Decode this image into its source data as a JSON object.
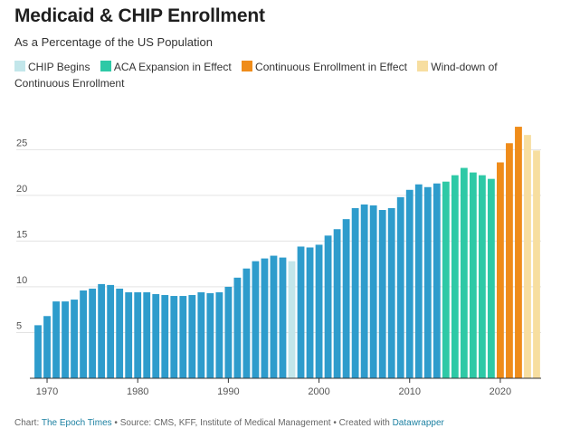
{
  "title": "Medicaid & CHIP Enrollment",
  "subtitle": "As a Percentage of the US Population",
  "legend": [
    {
      "label": "CHIP Begins",
      "color": "#c2e6ea"
    },
    {
      "label": "ACA Expansion in Effect",
      "color": "#2ec9a6"
    },
    {
      "label": "Continuous Enrollment in Effect",
      "color": "#ef8c1a"
    },
    {
      "label": "Wind-down of Continuous Enrollment",
      "color": "#f7dea0"
    }
  ],
  "footer": {
    "chart_prefix": "Chart: ",
    "chart_source": "The Epoch Times",
    "middle": " • Source: CMS, KFF, Institute of Medical Management • Created with ",
    "tool": "Datawrapper"
  },
  "chart_data": {
    "type": "bar",
    "title": "Medicaid & CHIP Enrollment",
    "subtitle": "As a Percentage of the US Population",
    "xlabel": "",
    "ylabel": "",
    "ylim": [
      0,
      28
    ],
    "yticks": [
      5,
      10,
      15,
      20,
      25
    ],
    "xticks": [
      1970,
      1980,
      1990,
      2000,
      2010,
      2020
    ],
    "xlim": [
      1969,
      2024
    ],
    "grid": true,
    "legend_position": "top",
    "colors": {
      "base": "#2e9ccc",
      "chip": "#c2e6ea",
      "aca": "#2ec9a6",
      "continuous": "#ef8c1a",
      "winddown": "#f7dea0"
    },
    "years": [
      1969,
      1970,
      1971,
      1972,
      1973,
      1974,
      1975,
      1976,
      1977,
      1978,
      1979,
      1980,
      1981,
      1982,
      1983,
      1984,
      1985,
      1986,
      1987,
      1988,
      1989,
      1990,
      1991,
      1992,
      1993,
      1994,
      1995,
      1996,
      1997,
      1998,
      1999,
      2000,
      2001,
      2002,
      2003,
      2004,
      2005,
      2006,
      2007,
      2008,
      2009,
      2010,
      2011,
      2012,
      2013,
      2014,
      2015,
      2016,
      2017,
      2018,
      2019,
      2020,
      2021,
      2022,
      2023,
      2024
    ],
    "values": [
      5.8,
      6.8,
      8.4,
      8.4,
      8.6,
      9.6,
      9.8,
      10.3,
      10.2,
      9.8,
      9.4,
      9.4,
      9.4,
      9.2,
      9.1,
      9.0,
      9.0,
      9.1,
      9.4,
      9.3,
      9.4,
      10.0,
      11.0,
      12.0,
      12.8,
      13.1,
      13.4,
      13.2,
      12.8,
      14.4,
      14.3,
      14.6,
      15.6,
      16.3,
      17.4,
      18.6,
      19.0,
      18.9,
      18.4,
      18.6,
      19.8,
      20.6,
      21.2,
      20.9,
      21.3,
      21.5,
      22.2,
      23.0,
      22.5,
      22.2,
      21.8,
      23.6,
      25.7,
      27.5,
      26.6,
      24.9
    ],
    "categories": [
      "base",
      "base",
      "base",
      "base",
      "base",
      "base",
      "base",
      "base",
      "base",
      "base",
      "base",
      "base",
      "base",
      "base",
      "base",
      "base",
      "base",
      "base",
      "base",
      "base",
      "base",
      "base",
      "base",
      "base",
      "base",
      "base",
      "base",
      "base",
      "chip",
      "base",
      "base",
      "base",
      "base",
      "base",
      "base",
      "base",
      "base",
      "base",
      "base",
      "base",
      "base",
      "base",
      "base",
      "base",
      "base",
      "aca",
      "aca",
      "aca",
      "aca",
      "aca",
      "aca",
      "continuous",
      "continuous",
      "continuous",
      "winddown",
      "winddown"
    ]
  }
}
